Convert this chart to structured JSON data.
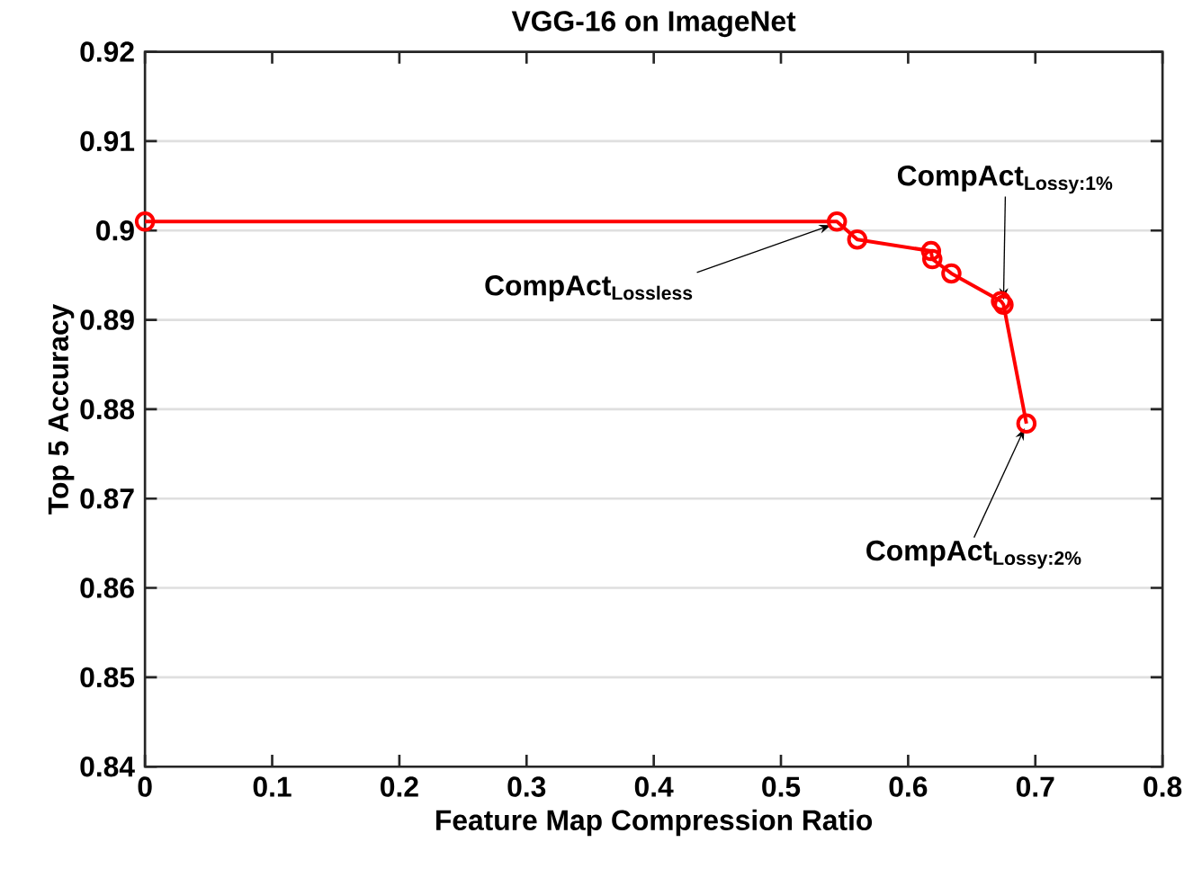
{
  "chart_data": {
    "type": "line",
    "title": "VGG-16 on ImageNet",
    "xlabel": "Feature Map Compression Ratio",
    "ylabel": "Top 5 Accuracy",
    "x": [
      0,
      0.544,
      0.56,
      0.618,
      0.619,
      0.634,
      0.673,
      0.675,
      0.693
    ],
    "series": [
      {
        "color": "#ff0000",
        "values": [
          0.901,
          0.901,
          0.899,
          0.8977,
          0.8968,
          0.8952,
          0.8921,
          0.8917,
          0.8784
        ]
      }
    ],
    "xlim": [
      0,
      0.8
    ],
    "xticks": [
      0,
      0.1,
      0.2,
      0.3,
      0.4,
      0.5,
      0.6,
      0.7,
      0.8
    ],
    "ylim": [
      0.84,
      0.92
    ],
    "yticks": [
      0.84,
      0.85,
      0.86,
      0.87,
      0.88,
      0.89,
      0.9,
      0.91,
      0.92
    ],
    "grid": "y",
    "marker": "circle",
    "line_style": "solid",
    "annotations": [
      {
        "text": "CompAct$_{Lossless}$",
        "x": 0.544,
        "y": 0.901
      },
      {
        "text": "CompAct$_{Lossy:1%}$",
        "x": 0.675,
        "y": 0.8917
      },
      {
        "text": "CompAct$_{Lossy:2%}$",
        "x": 0.693,
        "y": 0.8784
      }
    ]
  }
}
